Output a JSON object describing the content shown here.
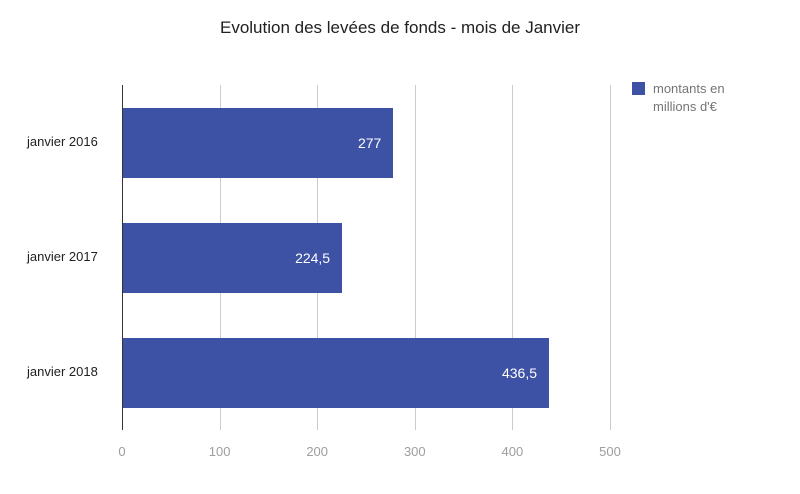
{
  "chart_data": {
    "type": "bar",
    "orientation": "horizontal",
    "title": "Evolution des levées de fonds - mois de Janvier",
    "categories": [
      "janvier 2016",
      "janvier 2017",
      "janvier 2018"
    ],
    "values": [
      277,
      224.5,
      436.5
    ],
    "value_labels": [
      "277",
      "224,5",
      "436,5"
    ],
    "xlabel": "",
    "ylabel": "",
    "xlim": [
      0,
      500
    ],
    "xticks": [
      "0",
      "100",
      "200",
      "300",
      "400",
      "500"
    ],
    "grid": true,
    "legend_position": "top-right",
    "legend": {
      "label": "montants en millions d'€"
    }
  },
  "colors": {
    "bar": "#3d51a5",
    "gridline": "#cccccc",
    "baseline": "#333333",
    "tick_text": "#9e9e9e",
    "category_text": "#212121",
    "value_text": "#ffffff",
    "legend_text": "#757575",
    "background": "#ffffff"
  }
}
